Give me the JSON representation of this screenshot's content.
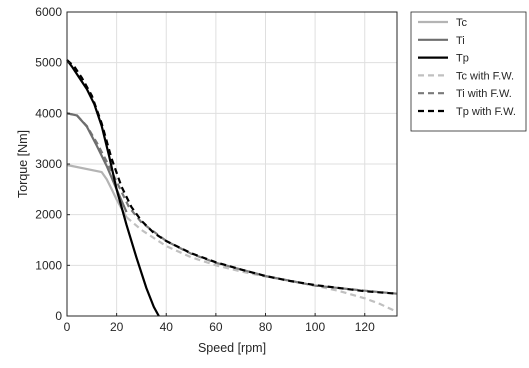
{
  "chart_data": {
    "type": "line",
    "title": "",
    "xlabel": "Speed [rpm]",
    "ylabel": "Torque [Nm]",
    "xlim": [
      0,
      133
    ],
    "ylim": [
      0,
      6000
    ],
    "xticks": [
      0,
      20,
      40,
      60,
      80,
      100,
      120
    ],
    "yticks": [
      0,
      1000,
      2000,
      3000,
      4000,
      5000,
      6000
    ],
    "grid": true,
    "legend_position": "outside-top-right",
    "series": [
      {
        "name": "Tc",
        "color": "#b4b4b4",
        "dash": "solid",
        "x": [
          0,
          14,
          16,
          18,
          20,
          22,
          24
        ],
        "y": [
          2980,
          2840,
          2700,
          2500,
          2300,
          2120,
          1950
        ]
      },
      {
        "name": "Ti",
        "color": "#6e6e6e",
        "dash": "solid",
        "x": [
          0,
          4,
          8,
          12,
          16,
          20,
          24
        ],
        "y": [
          4000,
          3960,
          3740,
          3360,
          2960,
          2500,
          2050
        ]
      },
      {
        "name": "Tp",
        "color": "#000000",
        "dash": "solid",
        "x": [
          0,
          2,
          5,
          8,
          11,
          14,
          17,
          20,
          24,
          28,
          32,
          35,
          37
        ],
        "y": [
          5050,
          4920,
          4700,
          4480,
          4180,
          3750,
          3150,
          2500,
          1800,
          1150,
          550,
          180,
          0
        ]
      },
      {
        "name": "Tc with F.W.",
        "color": "#c0c0c0",
        "dash": "dashed",
        "x": [
          24,
          30,
          40,
          50,
          60,
          70,
          80,
          90,
          100,
          110,
          120,
          126,
          133
        ],
        "y": [
          1950,
          1700,
          1380,
          1160,
          1000,
          880,
          780,
          690,
          600,
          490,
          350,
          240,
          80
        ]
      },
      {
        "name": "Ti with F.W.",
        "color": "#7a7a7a",
        "dash": "dashed",
        "x": [
          0,
          4,
          8,
          12,
          16,
          20,
          25,
          30,
          40,
          50,
          60,
          80,
          100,
          120,
          133
        ],
        "y": [
          4000,
          3960,
          3750,
          3420,
          3050,
          2650,
          2150,
          1850,
          1480,
          1230,
          1050,
          790,
          600,
          500,
          440
        ]
      },
      {
        "name": "Tp with F.W.",
        "color": "#000000",
        "dash": "dashed",
        "x": [
          0,
          3,
          6,
          10,
          14,
          18,
          22,
          26,
          30,
          35,
          40,
          50,
          60,
          70,
          80,
          90,
          100,
          110,
          120,
          133
        ],
        "y": [
          5050,
          4920,
          4700,
          4350,
          3800,
          3100,
          2550,
          2150,
          1880,
          1640,
          1480,
          1240,
          1060,
          920,
          790,
          690,
          610,
          550,
          490,
          440
        ]
      }
    ]
  }
}
